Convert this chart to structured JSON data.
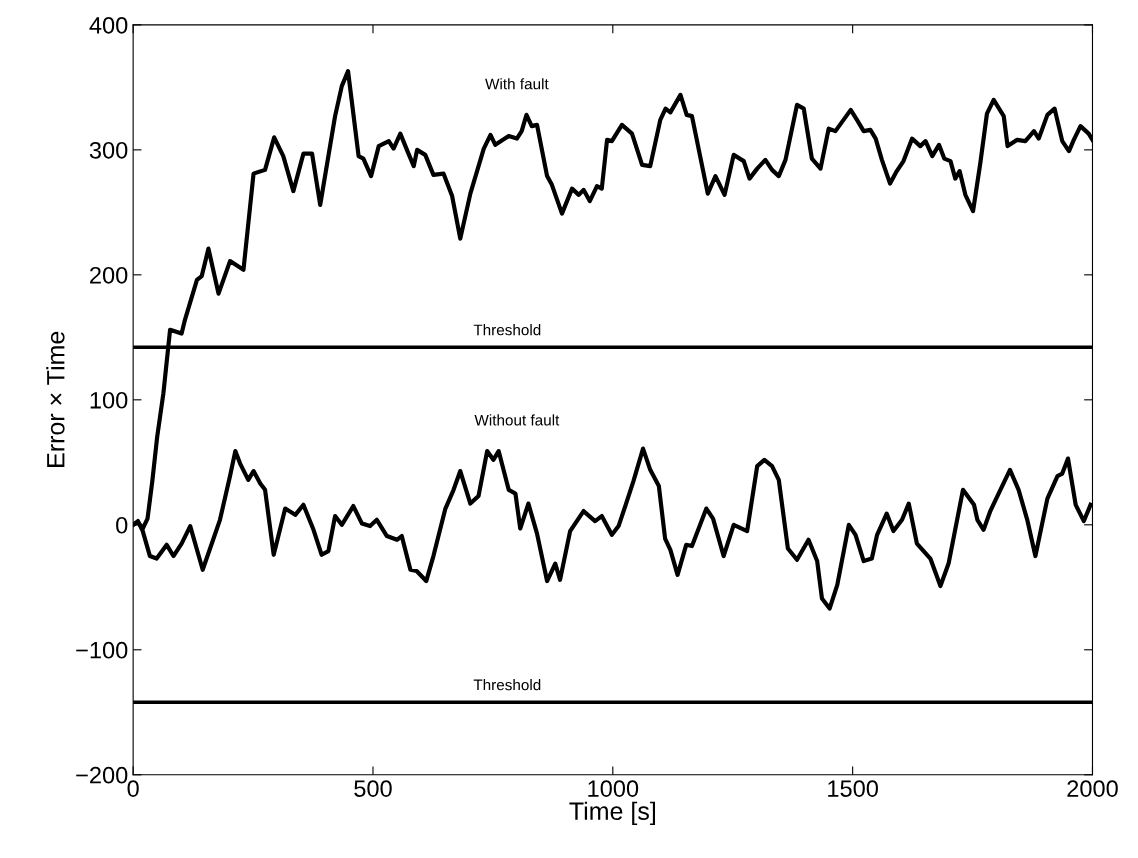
{
  "chart_data": {
    "type": "line",
    "xlabel": "Time [s]",
    "ylabel": "Error × Time",
    "xlim": [
      0,
      2000
    ],
    "xticks": [
      0,
      500,
      1000,
      1500,
      2000
    ],
    "ylim": [
      -200,
      400
    ],
    "yticks": [
      -200,
      -100,
      0,
      100,
      200,
      300,
      400
    ],
    "grid": false,
    "legend": false,
    "marker": "none",
    "line_style": "solid",
    "series": [
      {
        "name": "With fault",
        "color": "#000000",
        "x": [
          0,
          10,
          20,
          30,
          40,
          50,
          63,
          77,
          101,
          108,
          133,
          143,
          157,
          178,
          202,
          230,
          251,
          275,
          294,
          313,
          334,
          355,
          373,
          390,
          421,
          435,
          448,
          470,
          480,
          496,
          512,
          533,
          543,
          557,
          574,
          585,
          592,
          609,
          626,
          647,
          665,
          682,
          703,
          731,
          745,
          755,
          783,
          800,
          810,
          820,
          831,
          842,
          863,
          873,
          894,
          915,
          929,
          939,
          952,
          967,
          977,
          988,
          998,
          1019,
          1040,
          1061,
          1078,
          1099,
          1110,
          1120,
          1141,
          1154,
          1165,
          1182,
          1198,
          1214,
          1233,
          1252,
          1273,
          1285,
          1301,
          1318,
          1332,
          1346,
          1360,
          1384,
          1398,
          1415,
          1433,
          1450,
          1464,
          1481,
          1496,
          1509,
          1523,
          1537,
          1548,
          1561,
          1578,
          1592,
          1606,
          1624,
          1641,
          1652,
          1666,
          1680,
          1691,
          1704,
          1714,
          1723,
          1735,
          1751,
          1766,
          1780,
          1794,
          1815,
          1823,
          1843,
          1860,
          1878,
          1888,
          1906,
          1921,
          1937,
          1951,
          1961,
          1975,
          1992,
          2000
        ],
        "values": [
          0,
          2,
          -3,
          5,
          35,
          70,
          105,
          156,
          153,
          164,
          196,
          199,
          221,
          185,
          211,
          204,
          281,
          284,
          310,
          295,
          267,
          297,
          297,
          256,
          327,
          351,
          363,
          295,
          293,
          279,
          303,
          307,
          301,
          313,
          297,
          287,
          300,
          296,
          280,
          281,
          263,
          229,
          265,
          301,
          312,
          304,
          311,
          309,
          315,
          328,
          319,
          320,
          279,
          272,
          249,
          269,
          264,
          268,
          259,
          271,
          269,
          308,
          307,
          320,
          313,
          288,
          287,
          324,
          333,
          330,
          344,
          328,
          327,
          295,
          265,
          279,
          264,
          296,
          291,
          277,
          285,
          292,
          284,
          279,
          292,
          336,
          333,
          293,
          285,
          317,
          315,
          324,
          332,
          324,
          315,
          316,
          309,
          292,
          273,
          283,
          291,
          309,
          303,
          307,
          295,
          304,
          293,
          291,
          277,
          283,
          264,
          251,
          289,
          329,
          340,
          327,
          303,
          308,
          307,
          315,
          309,
          328,
          333,
          307,
          299,
          308,
          319,
          313,
          308
        ]
      },
      {
        "name": "Without fault",
        "color": "#000000",
        "x": [
          0,
          10,
          20,
          35,
          49,
          70,
          84,
          101,
          119,
          145,
          164,
          181,
          202,
          213,
          223,
          240,
          251,
          265,
          275,
          293,
          317,
          338,
          355,
          376,
          393,
          407,
          421,
          435,
          459,
          477,
          494,
          508,
          529,
          550,
          560,
          578,
          591,
          611,
          626,
          651,
          668,
          682,
          703,
          720,
          738,
          751,
          762,
          783,
          797,
          807,
          824,
          842,
          863,
          880,
          890,
          911,
          939,
          963,
          977,
          998,
          1012,
          1026,
          1043,
          1063,
          1078,
          1096,
          1109,
          1120,
          1135,
          1153,
          1165,
          1179,
          1195,
          1209,
          1231,
          1252,
          1280,
          1301,
          1316,
          1332,
          1346,
          1365,
          1384,
          1408,
          1426,
          1436,
          1452,
          1468,
          1492,
          1506,
          1523,
          1540,
          1551,
          1571,
          1585,
          1603,
          1617,
          1634,
          1662,
          1683,
          1700,
          1730,
          1753,
          1760,
          1773,
          1787,
          1808,
          1828,
          1846,
          1864,
          1881,
          1906,
          1927,
          1937,
          1949,
          1965,
          1982,
          1996
        ],
        "values": [
          0,
          3,
          -5,
          -25,
          -27,
          -16,
          -25,
          -15,
          -1,
          -36,
          -15,
          4,
          39,
          59,
          49,
          36,
          43,
          33,
          28,
          -24,
          13,
          8,
          16,
          -4,
          -24,
          -21,
          7,
          0,
          15,
          1,
          -1,
          4,
          -9,
          -12,
          -9,
          -36,
          -37,
          -45,
          -25,
          13,
          28,
          43,
          17,
          23,
          59,
          52,
          59,
          28,
          25,
          -3,
          17,
          -7,
          -45,
          -31,
          -44,
          -5,
          11,
          3,
          7,
          -8,
          -1,
          15,
          35,
          61,
          44,
          31,
          -11,
          -20,
          -40,
          -16,
          -17,
          -3,
          13,
          5,
          -25,
          0,
          -5,
          47,
          52,
          47,
          36,
          -19,
          -28,
          -12,
          -29,
          -59,
          -67,
          -48,
          0,
          -8,
          -29,
          -27,
          -8,
          9,
          -5,
          4,
          17,
          -15,
          -27,
          -49,
          -31,
          28,
          16,
          4,
          -4,
          11,
          28,
          44,
          28,
          4,
          -25,
          21,
          39,
          41,
          53,
          16,
          3,
          16
        ]
      }
    ],
    "ref_lines": [
      {
        "axis": "y",
        "value": 142,
        "label": "Threshold",
        "color": "#000000",
        "line_style": "solid"
      },
      {
        "axis": "y",
        "value": -142,
        "label": "Threshold",
        "color": "#000000",
        "line_style": "solid"
      }
    ]
  }
}
